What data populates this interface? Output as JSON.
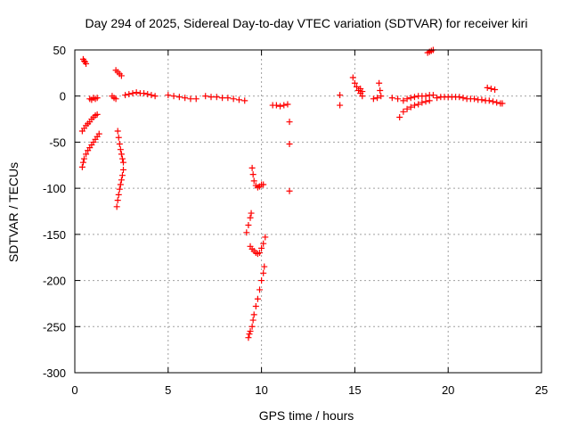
{
  "chart_data": {
    "type": "scatter",
    "title": "Day 294 of 2025, Sidereal Day-to-day VTEC variation (SDTVAR) for receiver kiri",
    "xlabel": "GPS time / hours",
    "ylabel": "SDTVAR / TECUs",
    "xlim": [
      0,
      25
    ],
    "ylim": [
      -300,
      50
    ],
    "xticks": [
      0,
      5,
      10,
      15,
      20,
      25
    ],
    "yticks": [
      -300,
      -250,
      -200,
      -150,
      -100,
      -50,
      0,
      50
    ],
    "xtick_labels": [
      "0",
      "5",
      "10",
      "15",
      "20",
      "25"
    ],
    "ytick_labels": [
      "-300",
      "-250",
      "-200",
      "-150",
      "-100",
      "-50",
      "0",
      "50"
    ],
    "grid": true,
    "marker": "plus",
    "color": "#ff0000",
    "series": [
      {
        "points": [
          [
            0.45,
            40
          ],
          [
            0.5,
            38
          ],
          [
            0.55,
            37
          ],
          [
            0.6,
            35
          ],
          [
            0.4,
            -38
          ],
          [
            0.5,
            -35
          ],
          [
            0.6,
            -32
          ],
          [
            0.7,
            -30
          ],
          [
            0.8,
            -28
          ],
          [
            0.9,
            -25
          ],
          [
            1.0,
            -23
          ],
          [
            1.1,
            -21
          ],
          [
            1.2,
            -20
          ],
          [
            0.4,
            -77
          ],
          [
            0.45,
            -72
          ],
          [
            0.5,
            -68
          ],
          [
            0.6,
            -63
          ],
          [
            0.7,
            -59
          ],
          [
            0.8,
            -56
          ],
          [
            0.9,
            -53
          ],
          [
            1.0,
            -50
          ],
          [
            1.1,
            -47
          ],
          [
            1.2,
            -44
          ],
          [
            1.3,
            -41
          ],
          [
            0.8,
            -3
          ],
          [
            0.9,
            -4
          ],
          [
            1.0,
            -2
          ],
          [
            1.1,
            -3
          ],
          [
            1.2,
            -2
          ],
          [
            2.0,
            0
          ],
          [
            2.1,
            -2
          ],
          [
            2.2,
            -3
          ],
          [
            2.2,
            28
          ],
          [
            2.3,
            26
          ],
          [
            2.4,
            24
          ],
          [
            2.5,
            22
          ],
          [
            2.3,
            -38
          ],
          [
            2.35,
            -45
          ],
          [
            2.4,
            -52
          ],
          [
            2.45,
            -58
          ],
          [
            2.5,
            -63
          ],
          [
            2.55,
            -68
          ],
          [
            2.6,
            -72
          ],
          [
            2.25,
            -120
          ],
          [
            2.3,
            -113
          ],
          [
            2.35,
            -107
          ],
          [
            2.4,
            -101
          ],
          [
            2.45,
            -96
          ],
          [
            2.5,
            -91
          ],
          [
            2.55,
            -86
          ],
          [
            2.6,
            -80
          ],
          [
            2.7,
            1
          ],
          [
            2.9,
            2
          ],
          [
            3.1,
            3
          ],
          [
            3.3,
            4
          ],
          [
            3.5,
            3
          ],
          [
            3.7,
            3
          ],
          [
            3.9,
            2
          ],
          [
            4.1,
            1
          ],
          [
            4.3,
            0
          ],
          [
            5.0,
            1
          ],
          [
            5.3,
            0
          ],
          [
            5.6,
            -1
          ],
          [
            5.9,
            -2
          ],
          [
            6.2,
            -3
          ],
          [
            6.5,
            -3
          ],
          [
            7.0,
            0
          ],
          [
            7.3,
            -1
          ],
          [
            7.6,
            -1
          ],
          [
            7.9,
            -2
          ],
          [
            8.2,
            -2
          ],
          [
            8.5,
            -3
          ],
          [
            8.8,
            -4
          ],
          [
            9.1,
            -5
          ],
          [
            9.4,
            -163
          ],
          [
            9.5,
            -166
          ],
          [
            9.6,
            -168
          ],
          [
            9.7,
            -170
          ],
          [
            9.8,
            -171
          ],
          [
            9.9,
            -170
          ],
          [
            10.0,
            -165
          ],
          [
            10.1,
            -160
          ],
          [
            10.2,
            -153
          ],
          [
            9.3,
            -262
          ],
          [
            9.35,
            -258
          ],
          [
            9.4,
            -255
          ],
          [
            9.5,
            -250
          ],
          [
            9.55,
            -243
          ],
          [
            9.6,
            -237
          ],
          [
            9.7,
            -228
          ],
          [
            9.8,
            -220
          ],
          [
            9.9,
            -210
          ],
          [
            10.0,
            -200
          ],
          [
            10.1,
            -192
          ],
          [
            10.15,
            -185
          ],
          [
            9.2,
            -148
          ],
          [
            9.3,
            -140
          ],
          [
            9.4,
            -132
          ],
          [
            9.45,
            -127
          ],
          [
            9.5,
            -78
          ],
          [
            9.55,
            -85
          ],
          [
            9.6,
            -92
          ],
          [
            9.7,
            -97
          ],
          [
            9.8,
            -99
          ],
          [
            9.9,
            -98
          ],
          [
            10.0,
            -96
          ],
          [
            10.1,
            -96
          ],
          [
            10.6,
            -10
          ],
          [
            10.8,
            -10
          ],
          [
            11.0,
            -11
          ],
          [
            11.2,
            -10
          ],
          [
            11.4,
            -9
          ],
          [
            11.5,
            -28
          ],
          [
            11.5,
            -52
          ],
          [
            11.5,
            -103
          ],
          [
            14.2,
            1
          ],
          [
            14.2,
            -10
          ],
          [
            14.9,
            20
          ],
          [
            15.0,
            14
          ],
          [
            15.1,
            10
          ],
          [
            15.2,
            6
          ],
          [
            15.3,
            3
          ],
          [
            15.4,
            0
          ],
          [
            15.3,
            8
          ],
          [
            15.4,
            5
          ],
          [
            16.0,
            -3
          ],
          [
            16.2,
            -2
          ],
          [
            16.3,
            14
          ],
          [
            16.35,
            6
          ],
          [
            16.4,
            0
          ],
          [
            17.0,
            -2
          ],
          [
            17.3,
            -3
          ],
          [
            17.4,
            -23
          ],
          [
            17.6,
            -17
          ],
          [
            17.8,
            -14
          ],
          [
            18.0,
            -12
          ],
          [
            18.2,
            -10
          ],
          [
            18.4,
            -9
          ],
          [
            18.6,
            -7
          ],
          [
            18.8,
            -6
          ],
          [
            19.0,
            -5
          ],
          [
            17.6,
            -5
          ],
          [
            17.8,
            -3
          ],
          [
            18.0,
            -2
          ],
          [
            18.2,
            -1
          ],
          [
            18.4,
            0
          ],
          [
            18.6,
            0
          ],
          [
            18.8,
            0
          ],
          [
            19.0,
            1
          ],
          [
            19.2,
            1
          ],
          [
            19.4,
            -2
          ],
          [
            19.6,
            -1
          ],
          [
            19.8,
            -1
          ],
          [
            20.0,
            -1
          ],
          [
            20.2,
            -1
          ],
          [
            20.4,
            -1
          ],
          [
            20.6,
            -1
          ],
          [
            18.9,
            47
          ],
          [
            19.0,
            48
          ],
          [
            19.1,
            49
          ],
          [
            19.2,
            50
          ],
          [
            20.8,
            -2
          ],
          [
            21.0,
            -3
          ],
          [
            21.2,
            -3
          ],
          [
            21.4,
            -3
          ],
          [
            21.6,
            -4
          ],
          [
            21.8,
            -4
          ],
          [
            22.0,
            -5
          ],
          [
            22.2,
            -5
          ],
          [
            22.4,
            -6
          ],
          [
            22.6,
            -7
          ],
          [
            22.8,
            -8
          ],
          [
            22.9,
            -8
          ],
          [
            22.1,
            9
          ],
          [
            22.3,
            8
          ],
          [
            22.5,
            7
          ]
        ]
      }
    ]
  }
}
